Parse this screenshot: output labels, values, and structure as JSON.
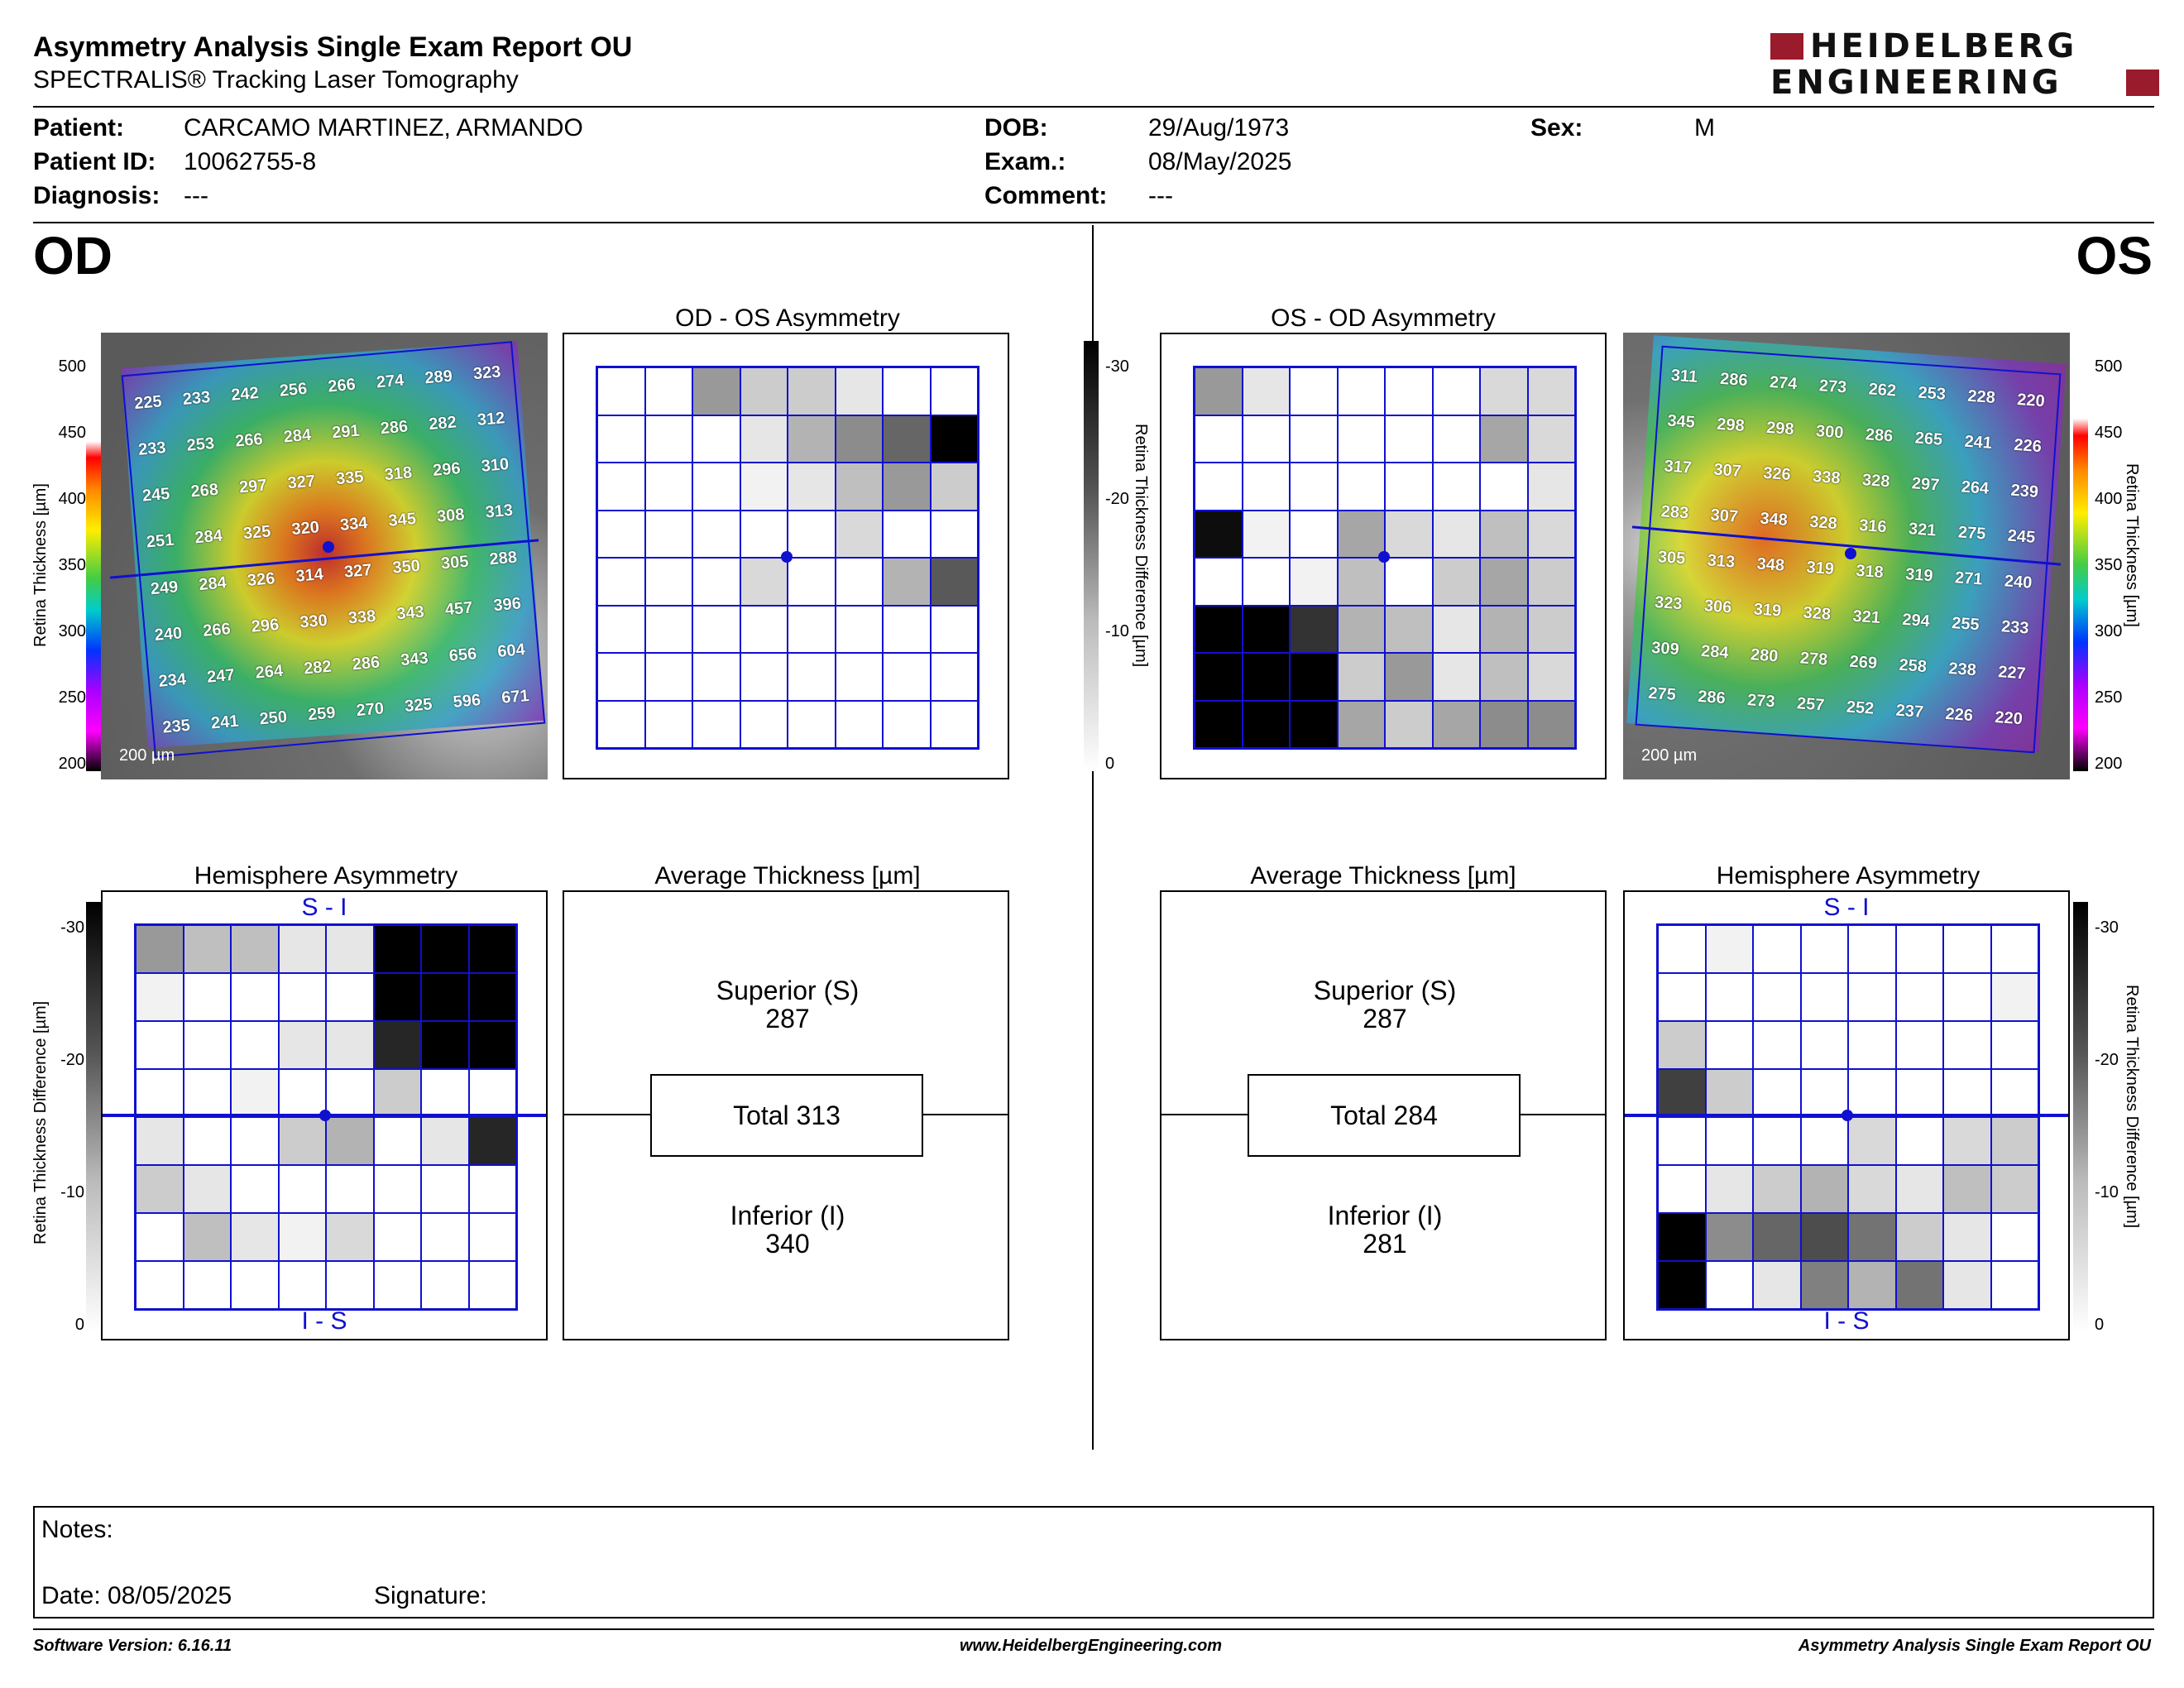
{
  "header": {
    "title": "Asymmetry Analysis Single Exam Report OU",
    "subtitle": "SPECTRALIS® Tracking Laser Tomography",
    "logo_top": "HEIDELBERG",
    "logo_bottom": "ENGINEERING"
  },
  "patient": {
    "patient_label": "Patient:",
    "patient_value": "CARCAMO MARTINEZ, ARMANDO",
    "id_label": "Patient ID:",
    "id_value": "10062755-8",
    "diagnosis_label": "Diagnosis:",
    "diagnosis_value": "---",
    "dob_label": "DOB:",
    "dob_value": "29/Aug/1973",
    "exam_label": "Exam.:",
    "exam_value": "08/May/2025",
    "comment_label": "Comment:",
    "comment_value": "---",
    "sex_label": "Sex:",
    "sex_value": "M"
  },
  "eyes": {
    "od": "OD",
    "os": "OS"
  },
  "od": {
    "asym_title": "OD - OS Asymmetry",
    "hemi_title": "Hemisphere Asymmetry",
    "avg_title": "Average Thickness [µm]",
    "scale_label": "200 µm",
    "si_top": "S - I",
    "si_bottom": "I - S",
    "superior_label": "Superior (S)",
    "superior_value": "287",
    "total_text": "Total 313",
    "inferior_label": "Inferior (I)",
    "inferior_value": "340",
    "thickness": [
      [
        "225",
        "233",
        "242",
        "256",
        "266",
        "274",
        "289",
        "323"
      ],
      [
        "233",
        "253",
        "266",
        "284",
        "291",
        "286",
        "282",
        "312"
      ],
      [
        "245",
        "268",
        "297",
        "327",
        "335",
        "318",
        "296",
        "310"
      ],
      [
        "251",
        "284",
        "325",
        "320",
        "334",
        "345",
        "308",
        "313"
      ],
      [
        "249",
        "284",
        "326",
        "314",
        "327",
        "350",
        "305",
        "288"
      ],
      [
        "240",
        "266",
        "296",
        "330",
        "338",
        "343",
        "457",
        "396"
      ],
      [
        "234",
        "247",
        "264",
        "282",
        "286",
        "343",
        "656",
        "604"
      ],
      [
        "235",
        "241",
        "250",
        "259",
        "270",
        "325",
        "596",
        "671"
      ]
    ],
    "asym_gray": [
      [
        0,
        0,
        40,
        20,
        20,
        10,
        0,
        0
      ],
      [
        0,
        0,
        0,
        10,
        30,
        45,
        60,
        100
      ],
      [
        0,
        0,
        0,
        5,
        10,
        25,
        40,
        20
      ],
      [
        0,
        0,
        0,
        0,
        0,
        15,
        0,
        0
      ],
      [
        0,
        0,
        0,
        15,
        0,
        0,
        30,
        65
      ],
      [
        0,
        0,
        0,
        0,
        0,
        0,
        0,
        0
      ],
      [
        0,
        0,
        0,
        0,
        0,
        0,
        0,
        0
      ],
      [
        0,
        0,
        0,
        0,
        0,
        0,
        0,
        0
      ]
    ],
    "hemi_gray": [
      [
        40,
        25,
        25,
        10,
        10,
        100,
        100,
        100
      ],
      [
        5,
        0,
        0,
        0,
        0,
        100,
        100,
        100
      ],
      [
        0,
        0,
        0,
        10,
        10,
        85,
        100,
        100
      ],
      [
        0,
        0,
        5,
        0,
        0,
        20,
        0,
        0
      ],
      [
        10,
        0,
        0,
        20,
        30,
        0,
        10,
        85
      ],
      [
        20,
        10,
        0,
        0,
        0,
        0,
        0,
        0
      ],
      [
        0,
        25,
        10,
        5,
        15,
        0,
        0,
        0
      ],
      [
        0,
        0,
        0,
        0,
        0,
        0,
        0,
        0
      ]
    ]
  },
  "os": {
    "asym_title": "OS - OD Asymmetry",
    "hemi_title": "Hemisphere Asymmetry",
    "avg_title": "Average Thickness [µm]",
    "scale_label": "200 µm",
    "si_top": "S - I",
    "si_bottom": "I - S",
    "superior_label": "Superior (S)",
    "superior_value": "287",
    "total_text": "Total 284",
    "inferior_label": "Inferior (I)",
    "inferior_value": "281",
    "thickness": [
      [
        "311",
        "286",
        "274",
        "273",
        "262",
        "253",
        "228",
        "220"
      ],
      [
        "345",
        "298",
        "298",
        "300",
        "286",
        "265",
        "241",
        "226"
      ],
      [
        "317",
        "307",
        "326",
        "338",
        "328",
        "297",
        "264",
        "239"
      ],
      [
        "283",
        "307",
        "348",
        "328",
        "316",
        "321",
        "275",
        "245"
      ],
      [
        "305",
        "313",
        "348",
        "319",
        "318",
        "319",
        "271",
        "240"
      ],
      [
        "323",
        "306",
        "319",
        "328",
        "321",
        "294",
        "255",
        "233"
      ],
      [
        "309",
        "284",
        "280",
        "278",
        "269",
        "258",
        "238",
        "227"
      ],
      [
        "275",
        "286",
        "273",
        "257",
        "252",
        "237",
        "226",
        "220"
      ]
    ],
    "asym_gray": [
      [
        40,
        10,
        0,
        0,
        0,
        0,
        15,
        15
      ],
      [
        0,
        0,
        0,
        0,
        0,
        0,
        35,
        15
      ],
      [
        0,
        0,
        0,
        0,
        0,
        0,
        0,
        10
      ],
      [
        95,
        5,
        0,
        35,
        15,
        10,
        25,
        15
      ],
      [
        0,
        0,
        5,
        25,
        0,
        20,
        35,
        20
      ],
      [
        100,
        100,
        80,
        30,
        25,
        10,
        30,
        20
      ],
      [
        100,
        100,
        100,
        20,
        40,
        10,
        25,
        15
      ],
      [
        100,
        100,
        100,
        35,
        20,
        35,
        45,
        45
      ]
    ],
    "hemi_gray": [
      [
        0,
        5,
        0,
        0,
        0,
        0,
        0,
        0
      ],
      [
        0,
        0,
        0,
        0,
        0,
        0,
        0,
        5
      ],
      [
        20,
        0,
        0,
        0,
        0,
        0,
        0,
        0
      ],
      [
        75,
        20,
        0,
        0,
        0,
        0,
        0,
        0
      ],
      [
        0,
        0,
        0,
        0,
        15,
        0,
        15,
        20
      ],
      [
        0,
        10,
        20,
        30,
        15,
        10,
        25,
        20
      ],
      [
        100,
        45,
        60,
        70,
        55,
        20,
        10,
        0
      ],
      [
        100,
        0,
        10,
        50,
        30,
        55,
        10,
        0
      ]
    ]
  },
  "scales": {
    "thickness_ticks": [
      "500",
      "450",
      "400",
      "350",
      "300",
      "250",
      "200"
    ],
    "thickness_label": "Retina  Thickness [µm]",
    "diff_ticks": [
      "-30",
      "-20",
      "-10",
      "0"
    ],
    "diff_label": "Retina Thickness Difference [µm]"
  },
  "notes": {
    "notes_label": "Notes:",
    "date_text": "Date: 08/05/2025",
    "signature_label": "Signature:"
  },
  "footer": {
    "left": "Software Version: 6.16.11",
    "center": "www.HeidelbergEngineering.com",
    "right": "Asymmetry Analysis Single Exam Report OU"
  }
}
